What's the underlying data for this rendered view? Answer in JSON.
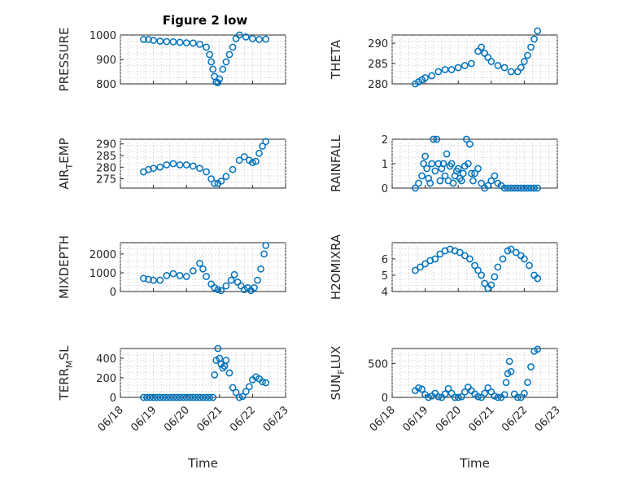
{
  "figure_title": "Figure 2 low",
  "marker_color": "#0072BD",
  "x_ticks": [
    "06/18",
    "06/19",
    "06/20",
    "06/21",
    "06/22",
    "06/23"
  ],
  "x_axis_label": "Time",
  "chart_data": [
    {
      "type": "scatter",
      "id": "pressure",
      "title": "Figure 2 low",
      "ylabel": "PRESSURE",
      "ylim": [
        800,
        1000
      ],
      "yticks": [
        "800",
        "900",
        "1000"
      ],
      "xlim": [
        18,
        23
      ],
      "grid": true,
      "x": [
        18.7,
        18.85,
        19.0,
        19.2,
        19.4,
        19.6,
        19.8,
        20.0,
        20.2,
        20.4,
        20.6,
        20.7,
        20.75,
        20.8,
        20.85,
        20.9,
        20.95,
        21.0,
        21.1,
        21.2,
        21.3,
        21.4,
        21.5,
        21.6,
        21.8,
        22.0,
        22.2,
        22.4
      ],
      "y": [
        982,
        982,
        978,
        975,
        973,
        972,
        970,
        968,
        967,
        962,
        950,
        920,
        890,
        860,
        830,
        808,
        805,
        820,
        860,
        890,
        920,
        950,
        985,
        1000,
        992,
        985,
        982,
        983
      ]
    },
    {
      "type": "scatter",
      "id": "theta",
      "ylabel": "THETA",
      "ylim": [
        280,
        292
      ],
      "yticks": [
        "280",
        "285",
        "290"
      ],
      "xlim": [
        18,
        23
      ],
      "grid": true,
      "x": [
        18.7,
        18.8,
        18.9,
        19.0,
        19.2,
        19.4,
        19.6,
        19.8,
        20.0,
        20.2,
        20.4,
        20.6,
        20.7,
        20.8,
        20.9,
        21.0,
        21.2,
        21.4,
        21.6,
        21.8,
        21.9,
        22.0,
        22.1,
        22.2,
        22.3,
        22.4
      ],
      "y": [
        280,
        280.5,
        281,
        281.5,
        282,
        283,
        283.5,
        283.5,
        284,
        284.5,
        285,
        288,
        289,
        287.5,
        286.5,
        285.5,
        284.5,
        284,
        283,
        283,
        284,
        285.5,
        287,
        289,
        291,
        293
      ]
    },
    {
      "type": "scatter",
      "id": "air_temp",
      "ylabel": "AIR_TEMP",
      "ylim": [
        271,
        292
      ],
      "yticks": [
        "275",
        "280",
        "285",
        "290"
      ],
      "xlim": [
        18,
        23
      ],
      "grid": true,
      "x": [
        18.7,
        18.85,
        19.0,
        19.2,
        19.4,
        19.6,
        19.8,
        20.0,
        20.2,
        20.4,
        20.6,
        20.75,
        20.85,
        20.95,
        21.05,
        21.2,
        21.4,
        21.6,
        21.75,
        21.9,
        22.0,
        22.1,
        22.2,
        22.3,
        22.4
      ],
      "y": [
        278,
        279,
        279.5,
        280,
        281,
        281.5,
        281,
        281,
        280.5,
        279.5,
        278,
        275,
        273,
        273,
        274,
        276,
        279,
        283,
        284.5,
        283,
        282,
        282.5,
        286,
        289,
        291
      ]
    },
    {
      "type": "scatter",
      "id": "rainfall",
      "ylabel": "RAINFALL",
      "ylim": [
        0,
        2
      ],
      "yticks": [
        "0",
        "1",
        "2"
      ],
      "xlim": [
        18,
        23
      ],
      "grid": true,
      "x": [
        18.7,
        18.8,
        18.9,
        18.95,
        19.0,
        19.05,
        19.1,
        19.15,
        19.2,
        19.25,
        19.3,
        19.35,
        19.4,
        19.45,
        19.5,
        19.55,
        19.6,
        19.65,
        19.7,
        19.75,
        19.8,
        19.85,
        19.9,
        19.95,
        20.0,
        20.05,
        20.1,
        20.15,
        20.2,
        20.25,
        20.3,
        20.35,
        20.4,
        20.45,
        20.5,
        20.6,
        20.7,
        20.8,
        20.9,
        21.0,
        21.1,
        21.2,
        21.3,
        21.4,
        21.5,
        21.6,
        21.7,
        21.8,
        21.9,
        22.0,
        22.1,
        22.2,
        22.3,
        22.4
      ],
      "y": [
        0,
        0.2,
        0.5,
        1.0,
        1.3,
        0.8,
        0.4,
        0.2,
        1.0,
        2.0,
        0.7,
        2.0,
        1.0,
        0.3,
        0.8,
        1.0,
        0.5,
        1.4,
        0.3,
        0.9,
        1.0,
        0.2,
        0.5,
        0.7,
        0.8,
        0.4,
        0.3,
        0.6,
        0.9,
        2.0,
        1.0,
        1.8,
        0.6,
        0.3,
        0.6,
        0.8,
        0.2,
        0.0,
        0.1,
        0.3,
        0.5,
        0.2,
        0.1,
        0.0,
        0.0,
        0.0,
        0.0,
        0.0,
        0.0,
        0.0,
        0.0,
        0.0,
        0.0,
        0.0
      ]
    },
    {
      "type": "scatter",
      "id": "mixdepth",
      "ylabel": "MIXDEPTH",
      "ylim": [
        0,
        2600
      ],
      "yticks": [
        "0",
        "1000",
        "2000"
      ],
      "xlim": [
        18,
        23
      ],
      "grid": true,
      "x": [
        18.7,
        18.85,
        19.0,
        19.2,
        19.4,
        19.6,
        19.8,
        20.0,
        20.2,
        20.4,
        20.5,
        20.6,
        20.75,
        20.85,
        20.95,
        21.05,
        21.2,
        21.35,
        21.45,
        21.55,
        21.65,
        21.75,
        21.85,
        21.95,
        22.05,
        22.15,
        22.25,
        22.35,
        22.4
      ],
      "y": [
        700,
        650,
        600,
        600,
        850,
        950,
        850,
        800,
        1100,
        1500,
        1200,
        800,
        400,
        200,
        100,
        50,
        300,
        600,
        900,
        500,
        300,
        100,
        200,
        50,
        200,
        600,
        1200,
        2000,
        2450
      ]
    },
    {
      "type": "scatter",
      "id": "h2omixra",
      "ylabel": "H2OMIXRA",
      "ylim": [
        4,
        7
      ],
      "yticks": [
        "4",
        "5",
        "6"
      ],
      "xlim": [
        18,
        23
      ],
      "grid": true,
      "x": [
        18.7,
        18.85,
        19.0,
        19.15,
        19.3,
        19.45,
        19.6,
        19.75,
        19.9,
        20.05,
        20.2,
        20.35,
        20.5,
        20.6,
        20.7,
        20.8,
        20.9,
        21.0,
        21.1,
        21.2,
        21.35,
        21.5,
        21.6,
        21.75,
        21.9,
        22.0,
        22.15,
        22.3,
        22.4
      ],
      "y": [
        5.3,
        5.5,
        5.7,
        5.9,
        6.0,
        6.3,
        6.5,
        6.6,
        6.5,
        6.4,
        6.2,
        6.0,
        5.6,
        5.3,
        5.0,
        4.5,
        4.2,
        4.4,
        4.9,
        5.5,
        6.0,
        6.5,
        6.6,
        6.4,
        6.2,
        6.0,
        5.6,
        5.0,
        4.8
      ]
    },
    {
      "type": "scatter",
      "id": "terr_msl",
      "ylabel": "TERR_MSL",
      "ylim": [
        0,
        500
      ],
      "yticks": [
        "0",
        "200",
        "400"
      ],
      "xlim": [
        18,
        23
      ],
      "grid": true,
      "x": [
        18.7,
        18.8,
        18.9,
        19.0,
        19.1,
        19.2,
        19.3,
        19.4,
        19.5,
        19.6,
        19.7,
        19.8,
        19.9,
        20.0,
        20.1,
        20.2,
        20.3,
        20.4,
        20.5,
        20.6,
        20.7,
        20.8,
        20.85,
        20.9,
        20.95,
        21.0,
        21.05,
        21.1,
        21.15,
        21.2,
        21.3,
        21.4,
        21.5,
        21.6,
        21.7,
        21.8,
        21.9,
        22.0,
        22.1,
        22.2,
        22.3,
        22.4
      ],
      "y": [
        0,
        0,
        0,
        0,
        0,
        0,
        0,
        0,
        0,
        0,
        0,
        0,
        0,
        0,
        0,
        0,
        0,
        0,
        0,
        0,
        0,
        0,
        230,
        380,
        500,
        400,
        340,
        300,
        320,
        380,
        250,
        100,
        50,
        0,
        10,
        60,
        110,
        180,
        210,
        190,
        160,
        150
      ]
    },
    {
      "type": "scatter",
      "id": "sun_flux",
      "ylabel": "SUN_FLUX",
      "ylim": [
        0,
        720
      ],
      "yticks": [
        "0",
        "500"
      ],
      "xlim": [
        18,
        23
      ],
      "grid": true,
      "x": [
        18.7,
        18.8,
        18.9,
        19.0,
        19.1,
        19.2,
        19.3,
        19.4,
        19.5,
        19.6,
        19.7,
        19.8,
        19.9,
        20.0,
        20.1,
        20.2,
        20.3,
        20.4,
        20.5,
        20.6,
        20.7,
        20.8,
        20.9,
        21.0,
        21.1,
        21.2,
        21.3,
        21.4,
        21.45,
        21.5,
        21.55,
        21.6,
        21.7,
        21.8,
        21.9,
        22.0,
        22.1,
        22.2,
        22.3,
        22.4
      ],
      "y": [
        100,
        140,
        120,
        40,
        0,
        20,
        60,
        10,
        0,
        50,
        130,
        60,
        0,
        0,
        10,
        80,
        150,
        100,
        50,
        10,
        0,
        60,
        140,
        80,
        20,
        0,
        0,
        40,
        220,
        350,
        530,
        380,
        50,
        0,
        0,
        60,
        220,
        450,
        680,
        710
      ]
    }
  ]
}
